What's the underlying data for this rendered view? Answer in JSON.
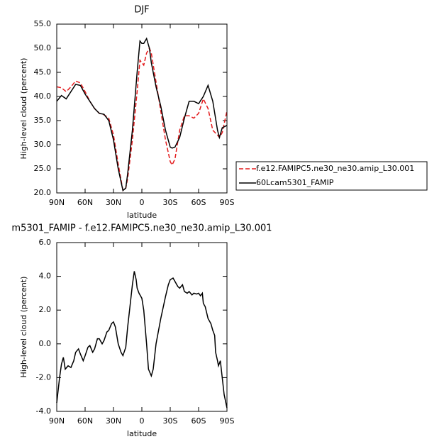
{
  "chart_data": [
    {
      "type": "line",
      "title": "DJF",
      "x_label": "latitude",
      "y_label": "High-level cloud (percent)",
      "x": [
        90,
        85,
        80,
        75,
        70,
        65,
        60,
        55,
        50,
        45,
        40,
        35,
        30,
        25,
        20,
        17,
        15,
        10,
        5,
        2,
        0,
        -2,
        -5,
        -8,
        -10,
        -15,
        -20,
        -25,
        -30,
        -32,
        -35,
        -40,
        -45,
        -50,
        -55,
        -60,
        -65,
        -70,
        -75,
        -80,
        -82,
        -85,
        -90
      ],
      "series": [
        {
          "name": "f.e12.FAMIPC5.ne30_ne30.amip_L30.001",
          "color": "#e31a1c",
          "dashed": true,
          "values": [
            42,
            41.8,
            41,
            42,
            43.2,
            42.8,
            41,
            39,
            37.5,
            36.5,
            36.2,
            35.5,
            32,
            26,
            20.5,
            21,
            23,
            31,
            41,
            47.5,
            47,
            46.5,
            49,
            50,
            49,
            43,
            37,
            31,
            26.5,
            25.8,
            27,
            33,
            36,
            36,
            35.5,
            36.5,
            39.5,
            37.5,
            33,
            32,
            31.5,
            32.5,
            37
          ]
        },
        {
          "name": "60Lcam5301_FAMIP",
          "color": "#000000",
          "dashed": false,
          "values": [
            39,
            40.2,
            39.5,
            41,
            42.5,
            42.3,
            40.5,
            39,
            37.5,
            36.5,
            36.3,
            35,
            31,
            25,
            20.5,
            21,
            24,
            33,
            45,
            51.5,
            51,
            51,
            52,
            50,
            47,
            42,
            38,
            33,
            29.5,
            29.3,
            29.5,
            31.5,
            35.5,
            39,
            39,
            38.5,
            40,
            42.3,
            39,
            33,
            31.5,
            33.5,
            34
          ]
        }
      ],
      "xlim": [
        90,
        -90
      ],
      "xticks": [
        {
          "value": 90,
          "label": "90N"
        },
        {
          "value": 60,
          "label": "60N"
        },
        {
          "value": 30,
          "label": "30N"
        },
        0,
        {
          "value": -30,
          "label": "30S"
        },
        {
          "value": -60,
          "label": "60S"
        },
        {
          "value": -90,
          "label": "90S"
        }
      ],
      "ylim": [
        20,
        55
      ],
      "yticks": [
        {
          "value": 20,
          "label": "20.0"
        },
        {
          "value": 25,
          "label": "25.0"
        },
        {
          "value": 30,
          "label": "30.0"
        },
        {
          "value": 35,
          "label": "35.0"
        },
        {
          "value": 40,
          "label": "40.0"
        },
        {
          "value": 45,
          "label": "45.0"
        },
        {
          "value": 50,
          "label": "50.0"
        },
        {
          "value": 55,
          "label": "55.0"
        }
      ],
      "legend": "outside-right"
    },
    {
      "type": "line",
      "title": "m5301_FAMIP - f.e12.FAMIPC5.ne30_ne30.amip_L30.001",
      "x_label": "latitude",
      "y_label": "High-level cloud (percent)",
      "x": [
        90,
        87,
        85,
        83,
        81,
        78,
        75,
        72,
        70,
        67,
        65,
        62,
        60,
        57,
        55,
        52,
        50,
        47,
        45,
        42,
        40,
        37,
        35,
        32,
        30,
        28,
        25,
        22,
        20,
        17,
        15,
        12,
        10,
        8,
        6,
        5,
        3,
        0,
        -2,
        -5,
        -7,
        -10,
        -12,
        -15,
        -20,
        -25,
        -28,
        -30,
        -33,
        -35,
        -38,
        -40,
        -43,
        -45,
        -48,
        -50,
        -53,
        -55,
        -58,
        -60,
        -62,
        -64,
        -65,
        -67,
        -70,
        -73,
        -75,
        -77,
        -78,
        -80,
        -81,
        -83,
        -85,
        -87,
        -90
      ],
      "values": [
        -3.5,
        -2,
        -1.2,
        -0.8,
        -1.5,
        -1.3,
        -1.4,
        -1,
        -0.5,
        -0.3,
        -0.6,
        -1,
        -0.7,
        -0.2,
        -0.1,
        -0.5,
        -0.3,
        0.3,
        0.3,
        0,
        0.2,
        0.7,
        0.8,
        1.2,
        1.3,
        1,
        0,
        -0.5,
        -0.7,
        -0.2,
        1,
        2.5,
        3.5,
        4.3,
        3.8,
        3.3,
        3,
        2.7,
        2,
        0,
        -1.5,
        -1.9,
        -1.5,
        0,
        1.5,
        2.8,
        3.5,
        3.8,
        3.9,
        3.7,
        3.4,
        3.3,
        3.5,
        3.1,
        3,
        3.1,
        2.9,
        3,
        2.95,
        3,
        2.85,
        3,
        2.4,
        2.2,
        1.5,
        1.2,
        0.8,
        0.5,
        -0.5,
        -1,
        -1.3,
        -1,
        -2,
        -3,
        -3.8
      ],
      "color": "#000000",
      "xlim": [
        90,
        -90
      ],
      "xticks": [
        {
          "value": 90,
          "label": "90N"
        },
        {
          "value": 60,
          "label": "60N"
        },
        {
          "value": 30,
          "label": "30N"
        },
        0,
        {
          "value": -30,
          "label": "30S"
        },
        {
          "value": -60,
          "label": "60S"
        },
        {
          "value": -90,
          "label": "90S"
        }
      ],
      "ylim": [
        -4,
        6
      ],
      "yticks": [
        {
          "value": -4,
          "label": "-4.0"
        },
        {
          "value": -2,
          "label": "-2.0"
        },
        {
          "value": 0,
          "label": "0.0"
        },
        {
          "value": 2,
          "label": "2.0"
        },
        {
          "value": 4,
          "label": "4.0"
        },
        {
          "value": 6,
          "label": "6.0"
        }
      ]
    }
  ]
}
